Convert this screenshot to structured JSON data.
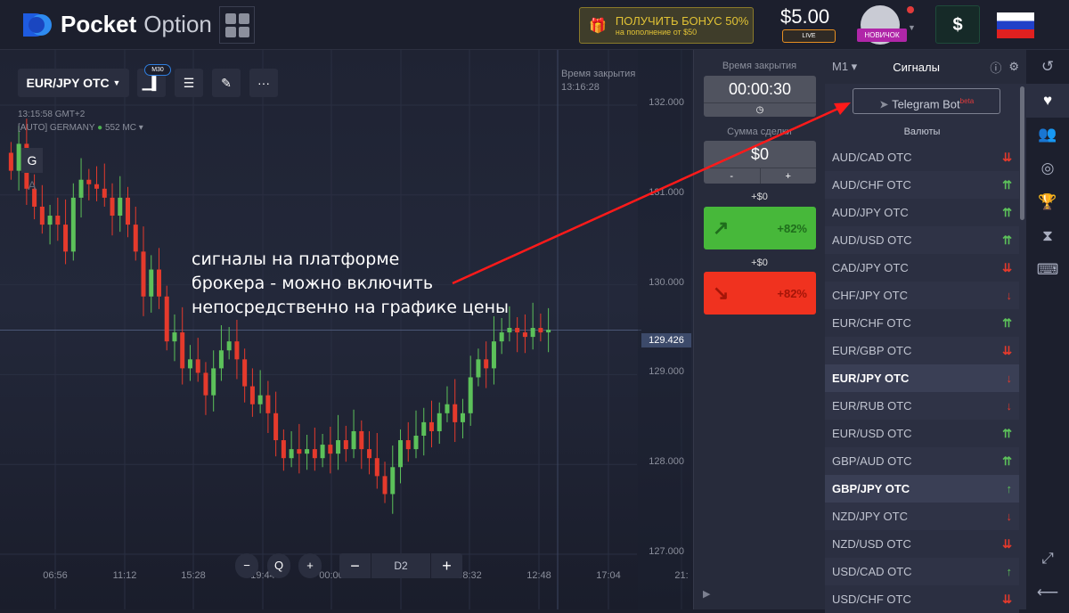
{
  "header": {
    "logo_bold": "Pocket",
    "logo_light": "Option",
    "bonus_title": "ПОЛУЧИТЬ БОНУС 50%",
    "bonus_sub": "на пополнение от $50",
    "balance": "$5.00",
    "account_type": "LIVE",
    "rank": "НОВИЧОК",
    "deposit_label": "$",
    "language": "ru"
  },
  "toolbar": {
    "asset": "EUR/JPY OTC",
    "timeframe_badge": "M30"
  },
  "chart_info": {
    "time": "13:15:58 GMT+2",
    "server": "[AUTO] GERMANY",
    "ping": "552 MC",
    "g_label": "G",
    "a_label": "A",
    "close_time_label": "Время закрытия",
    "close_time": "13:16:28",
    "current_price": "129.426"
  },
  "chart_data": {
    "type": "candlestick",
    "y_ticks": [
      "132.000",
      "131.000",
      "130.000",
      "129.000",
      "128.000",
      "127.000"
    ],
    "x_ticks": [
      "06:56",
      "11:12",
      "15:28",
      "19:44",
      "00:00",
      "04:16",
      "08:32",
      "12:48",
      "17:04",
      "21:"
    ],
    "closes": [
      131.2,
      131.5,
      131.0,
      130.8,
      130.6,
      130.7,
      130.6,
      130.3,
      130.9,
      131.1,
      131.05,
      131.0,
      130.9,
      130.7,
      130.9,
      130.6,
      130.3,
      129.8,
      130.1,
      129.8,
      129.3,
      129.4,
      129.0,
      129.1,
      128.95,
      128.7,
      129.0,
      129.2,
      129.3,
      129.1,
      128.8,
      128.6,
      128.7,
      128.5,
      128.2,
      128.0,
      128.1,
      128.05,
      128.1,
      128.0,
      128.15,
      128.05,
      128.2,
      128.1,
      128.3,
      128.1,
      128.0,
      127.8,
      127.6,
      127.9,
      128.2,
      128.1,
      128.25,
      128.4,
      128.3,
      128.5,
      128.6,
      128.4,
      128.5,
      128.9,
      129.1,
      129.0,
      129.3,
      129.4,
      129.45,
      129.4,
      129.35,
      129.45,
      129.4,
      129.43
    ]
  },
  "zoom": {
    "out": "−",
    "reset": "Q",
    "in": "+"
  },
  "period": {
    "minus": "−",
    "value": "D2",
    "plus": "+"
  },
  "annotation": [
    "сигналы на платформе",
    "брокера - можно включить",
    "непосредственно на графике цены"
  ],
  "trade": {
    "time_label": "Время закрытия",
    "time_value": "00:00:30",
    "amount_label": "Сумма сделки",
    "amount_value": "$0",
    "minus": "-",
    "plus": "+",
    "up_profit": "+$0",
    "up_percent": "+82%",
    "down_profit": "+$0",
    "down_percent": "+82%",
    "up_color": "#47b83a",
    "down_color": "#f0321f"
  },
  "signals": {
    "timeframe": "M1",
    "title": "Сигналы",
    "telegram": "Telegram Bot",
    "beta": "beta",
    "currencies_label": "Валюты",
    "items": [
      {
        "pair": "AUD/CAD OTC",
        "arrow": "⇊",
        "dir": "down"
      },
      {
        "pair": "AUD/CHF OTC",
        "arrow": "⇈",
        "dir": "up"
      },
      {
        "pair": "AUD/JPY OTC",
        "arrow": "⇈",
        "dir": "up"
      },
      {
        "pair": "AUD/USD OTC",
        "arrow": "⇈",
        "dir": "up"
      },
      {
        "pair": "CAD/JPY OTC",
        "arrow": "⇊",
        "dir": "down"
      },
      {
        "pair": "CHF/JPY OTC",
        "arrow": "↓",
        "dir": "down"
      },
      {
        "pair": "EUR/CHF OTC",
        "arrow": "⇈",
        "dir": "up"
      },
      {
        "pair": "EUR/GBP OTC",
        "arrow": "⇊",
        "dir": "down"
      },
      {
        "pair": "EUR/JPY OTC",
        "arrow": "↓",
        "dir": "down",
        "active": true
      },
      {
        "pair": "EUR/RUB OTC",
        "arrow": "↓",
        "dir": "down"
      },
      {
        "pair": "EUR/USD OTC",
        "arrow": "⇈",
        "dir": "up"
      },
      {
        "pair": "GBP/AUD OTC",
        "arrow": "⇈",
        "dir": "up"
      },
      {
        "pair": "GBP/JPY OTC",
        "arrow": "↑",
        "dir": "up",
        "active": true
      },
      {
        "pair": "NZD/JPY OTC",
        "arrow": "↓",
        "dir": "down"
      },
      {
        "pair": "NZD/USD OTC",
        "arrow": "⇊",
        "dir": "down"
      },
      {
        "pair": "USD/CAD OTC",
        "arrow": "↑",
        "dir": "up"
      },
      {
        "pair": "USD/CHF OTC",
        "arrow": "⇊",
        "dir": "down"
      }
    ]
  },
  "sidebar": [
    "history-icon",
    "signals-icon",
    "social-icon",
    "tournaments-icon",
    "achievements-icon",
    "pending-icon",
    "hotkeys-icon"
  ],
  "colors": {
    "up": "#5cc15a",
    "down": "#e53a2c",
    "arrow": "#ff1a1a"
  }
}
